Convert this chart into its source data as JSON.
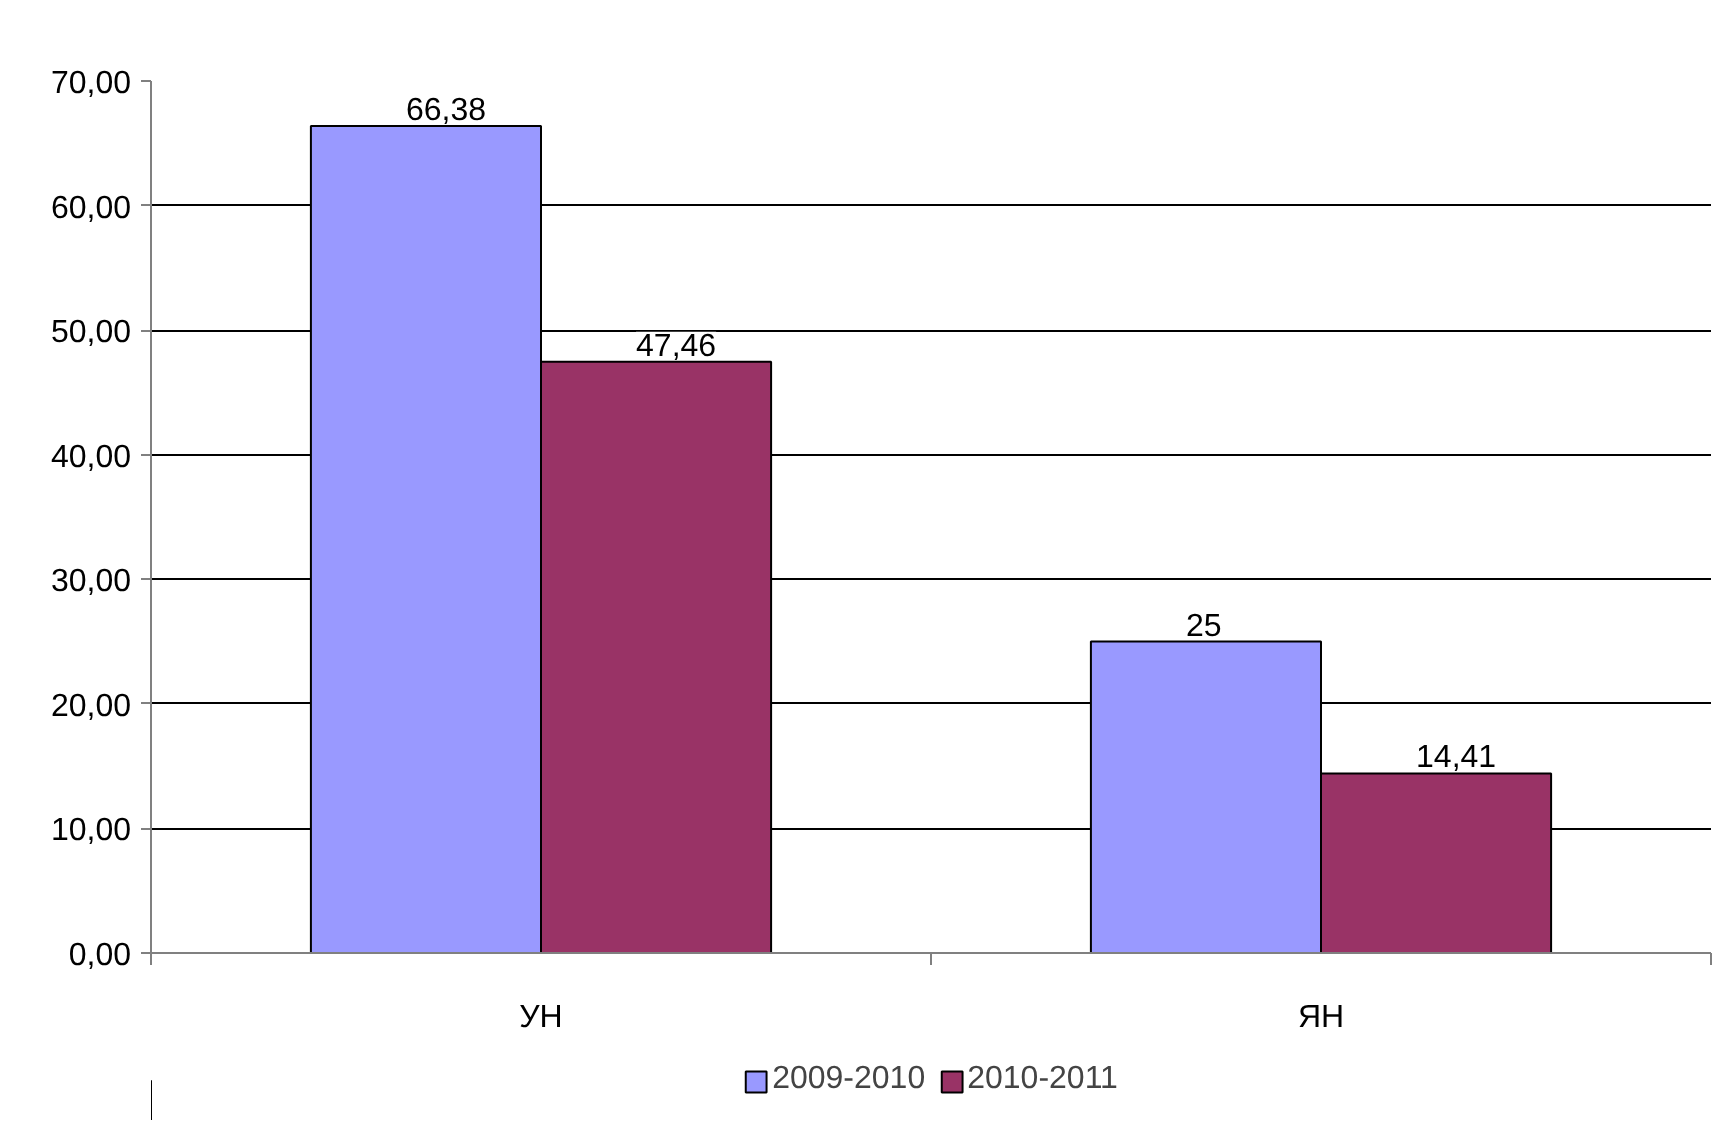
{
  "chart_data": {
    "type": "bar",
    "categories": [
      "УН",
      "ЯН"
    ],
    "series": [
      {
        "name": "2009-2010",
        "color": "#9999ff",
        "values": [
          66.38,
          25
        ],
        "value_labels": [
          "66,38",
          "25"
        ]
      },
      {
        "name": "2010-2011",
        "color": "#993366",
        "values": [
          47.46,
          14.41
        ],
        "value_labels": [
          "47,46",
          "14,41"
        ]
      }
    ],
    "ylim": [
      0,
      70
    ],
    "yticks": [
      {
        "value": 0,
        "label": "0,00"
      },
      {
        "value": 10,
        "label": "10,00"
      },
      {
        "value": 20,
        "label": "20,00"
      },
      {
        "value": 30,
        "label": "30,00"
      },
      {
        "value": 40,
        "label": "40,00"
      },
      {
        "value": 50,
        "label": "50,00"
      },
      {
        "value": 60,
        "label": "60,00"
      },
      {
        "value": 70,
        "label": "70,00"
      }
    ],
    "grid": "y",
    "legend": "bottom"
  }
}
